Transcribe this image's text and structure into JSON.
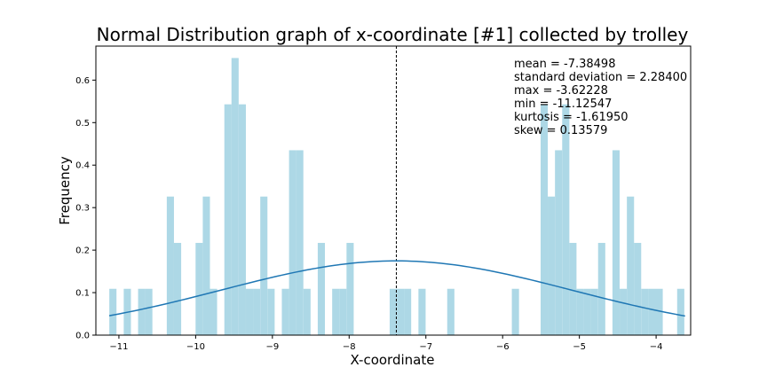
{
  "chart_data": {
    "type": "bar",
    "title": "Normal Distribution graph of x-coordinate [#1] collected by trolley",
    "xlabel": "X-coordinate",
    "ylabel": "Frequency",
    "xlim": [
      -11.3,
      -3.55
    ],
    "ylim": [
      0,
      0.68
    ],
    "xticks": [
      -11,
      -10,
      -9,
      -8,
      -7,
      -6,
      -5,
      -4
    ],
    "xtick_labels": [
      "−11",
      "−10",
      "−9",
      "−8",
      "−7",
      "−6",
      "−5",
      "−4"
    ],
    "yticks": [
      0.0,
      0.1,
      0.2,
      0.3,
      0.4,
      0.5,
      0.6
    ],
    "ytick_labels": [
      "0.0",
      "0.1",
      "0.2",
      "0.3",
      "0.4",
      "0.5",
      "0.6"
    ],
    "bin_width": 0.0935,
    "histogram": {
      "bin_left": [
        -11.125,
        -10.937,
        -10.75,
        -10.657,
        -10.376,
        -10.282,
        -10.001,
        -9.907,
        -9.814,
        -9.626,
        -9.533,
        -9.439,
        -9.345,
        -9.252,
        -9.158,
        -9.064,
        -8.877,
        -8.783,
        -8.69,
        -8.596,
        -8.409,
        -8.221,
        -8.128,
        -8.034,
        -7.472,
        -7.378,
        -7.285,
        -7.097,
        -6.722,
        -5.88,
        -5.505,
        -5.412,
        -5.318,
        -5.224,
        -5.131,
        -5.037,
        -4.943,
        -4.85,
        -4.756,
        -4.569,
        -4.475,
        -4.381,
        -4.288,
        -4.194,
        -4.1,
        -4.007,
        -3.726
      ],
      "frequency": [
        0.109,
        0.109,
        0.109,
        0.109,
        0.326,
        0.217,
        0.217,
        0.326,
        0.109,
        0.543,
        0.652,
        0.543,
        0.109,
        0.109,
        0.326,
        0.109,
        0.109,
        0.435,
        0.435,
        0.109,
        0.217,
        0.109,
        0.109,
        0.217,
        0.109,
        0.109,
        0.109,
        0.109,
        0.109,
        0.109,
        0.543,
        0.326,
        0.435,
        0.543,
        0.217,
        0.109,
        0.109,
        0.109,
        0.217,
        0.435,
        0.109,
        0.326,
        0.217,
        0.109,
        0.109,
        0.109,
        0.109
      ],
      "color": "#add8e6"
    },
    "pdf_curve": {
      "mean": -7.38498,
      "sd": 2.284,
      "x_range": [
        -11.12547,
        -3.62228
      ],
      "color": "#1f77b4"
    },
    "mean_line": {
      "x": -7.38498,
      "style": "dashed",
      "color": "#000000"
    },
    "stats_text": [
      "mean = -7.38498",
      "standard deviation = 2.28400",
      "max = -3.62228",
      "min = -11.12547",
      "kurtosis = -1.61950",
      "skew = 0.13579"
    ]
  }
}
